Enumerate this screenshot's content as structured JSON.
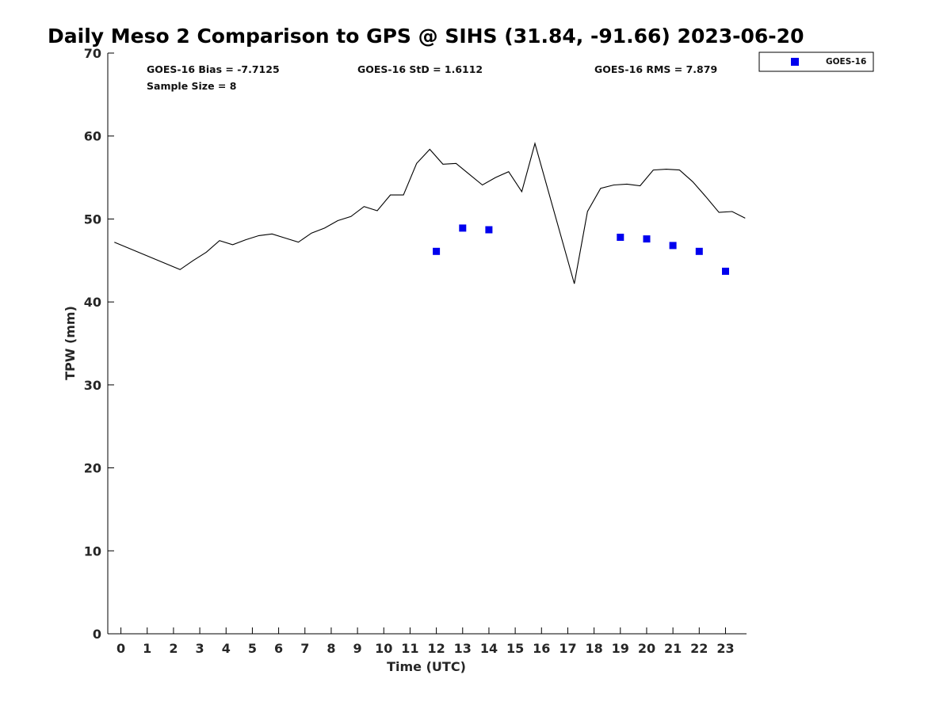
{
  "chart_data": {
    "type": "line",
    "title": "Daily Meso 2 Comparison to GPS @ SIHS (31.84, -91.66) 2023-06-20",
    "xlabel": "Time (UTC)",
    "ylabel": "TPW (mm)",
    "xlim": [
      -0.5,
      23.8
    ],
    "ylim": [
      0,
      70
    ],
    "x_ticks": [
      0,
      1,
      2,
      3,
      4,
      5,
      6,
      7,
      8,
      9,
      10,
      11,
      12,
      13,
      14,
      15,
      16,
      17,
      18,
      19,
      20,
      21,
      22,
      23
    ],
    "y_ticks": [
      0,
      10,
      20,
      30,
      40,
      50,
      60,
      70
    ],
    "grid": false,
    "stats": [
      {
        "text": "GOES-16 Bias = -7.7125"
      },
      {
        "text": "GOES-16 StD = 1.6112"
      },
      {
        "text": "GOES-16 RMS = 7.879"
      },
      {
        "text": "Sample Size = 8"
      }
    ],
    "legend": {
      "position": "outside-top-right",
      "entries": [
        {
          "label": "GOES-16",
          "color": "#0000ee",
          "marker": "square"
        }
      ]
    },
    "series": [
      {
        "style": "line",
        "color": "#000000",
        "x": [
          -0.25,
          2.25,
          2.75,
          3.25,
          3.75,
          4.25,
          4.75,
          5.25,
          5.75,
          6.25,
          6.75,
          7.25,
          7.75,
          8.25,
          8.75,
          9.25,
          9.75,
          10.25,
          10.75,
          11.25,
          11.75,
          12.25,
          12.75,
          13.25,
          13.75,
          14.25,
          14.75,
          15.25,
          15.75,
          17.25,
          17.75,
          18.25,
          18.75,
          19.25,
          19.75,
          20.25,
          20.75,
          21.25,
          21.75,
          22.25,
          22.75,
          23.25,
          23.75
        ],
        "y": [
          47.2,
          43.9,
          45.0,
          46.0,
          47.4,
          46.9,
          47.5,
          48.0,
          48.2,
          47.7,
          47.2,
          48.3,
          48.9,
          49.8,
          50.3,
          51.5,
          51.0,
          52.9,
          52.9,
          56.7,
          58.4,
          56.6,
          56.7,
          55.4,
          54.1,
          55.0,
          55.7,
          53.3,
          59.1,
          42.2,
          50.9,
          53.7,
          54.1,
          54.2,
          54.0,
          55.9,
          56.0,
          55.9,
          54.5,
          52.7,
          50.8,
          50.9,
          50.1
        ]
      },
      {
        "name": "GOES-16",
        "style": "scatter",
        "color": "#0000ee",
        "marker": "square",
        "x": [
          12,
          13,
          14,
          19,
          20,
          21,
          22,
          23
        ],
        "y": [
          46.1,
          48.9,
          48.7,
          47.8,
          47.6,
          46.8,
          46.1,
          43.7
        ]
      }
    ]
  }
}
